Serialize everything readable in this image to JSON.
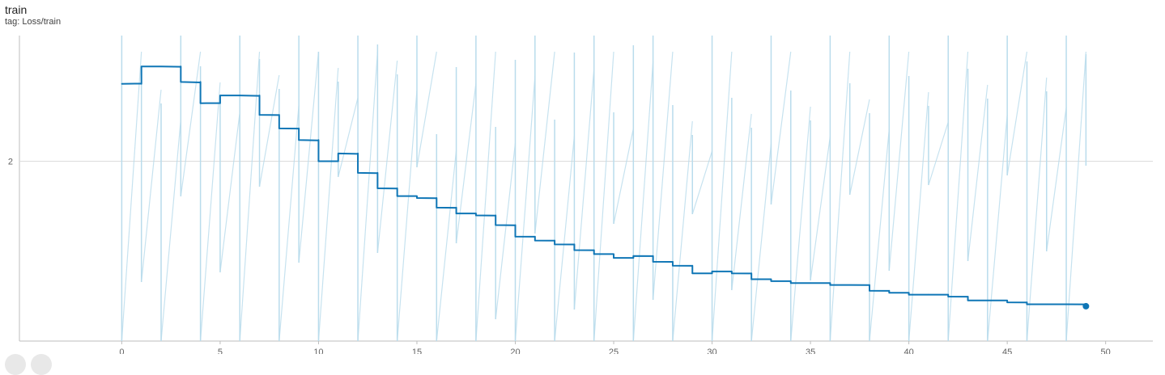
{
  "header": {
    "title": "train",
    "tag": "tag: Loss/train"
  },
  "colors": {
    "smoothed": "#0f76b6",
    "raw": "#b9dcec",
    "grid": "#dcdcdc",
    "axis": "#bdbdbd"
  },
  "chart_data": {
    "type": "line",
    "title": "train",
    "subtitle": "tag: Loss/train",
    "xlabel": "",
    "ylabel": "",
    "xlim": [
      -5.2,
      52.4
    ],
    "ylim": [
      1.07,
      2.65
    ],
    "x_ticks": [
      0,
      5,
      10,
      15,
      20,
      25,
      30,
      35,
      40,
      45,
      50
    ],
    "y_ticks": [
      2
    ],
    "grid": true,
    "series": [
      {
        "name": "",
        "role": "smoothed",
        "x": [
          0,
          1,
          2,
          3,
          4,
          5,
          6,
          7,
          8,
          9,
          10,
          11,
          12,
          13,
          14,
          15,
          16,
          17,
          18,
          19,
          20,
          21,
          22,
          23,
          24,
          25,
          26,
          27,
          28,
          29,
          30,
          31,
          32,
          33,
          34,
          35,
          36,
          37,
          38,
          39,
          40,
          41,
          42,
          43,
          44,
          45,
          46,
          47,
          48,
          49
        ],
        "y": [
          2.4,
          2.49,
          2.49,
          2.41,
          2.3,
          2.34,
          2.34,
          2.24,
          2.17,
          2.11,
          2.0,
          2.04,
          1.94,
          1.86,
          1.82,
          1.81,
          1.76,
          1.73,
          1.72,
          1.67,
          1.61,
          1.59,
          1.57,
          1.54,
          1.52,
          1.5,
          1.51,
          1.48,
          1.46,
          1.42,
          1.43,
          1.42,
          1.39,
          1.38,
          1.37,
          1.37,
          1.36,
          1.36,
          1.33,
          1.32,
          1.31,
          1.31,
          1.3,
          1.28,
          1.28,
          1.27,
          1.26,
          1.26,
          1.26,
          1.25
        ]
      }
    ]
  }
}
